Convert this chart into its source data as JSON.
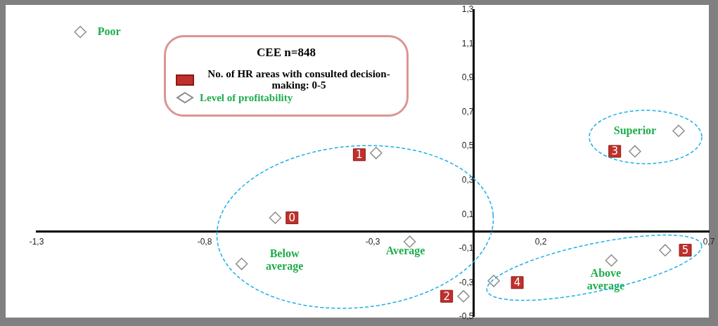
{
  "chart_data": {
    "type": "scatter",
    "title": "CEE n=848",
    "xlim": [
      -1.3,
      0.7
    ],
    "xticks": [
      {
        "value": -1.3,
        "label": "-1,3"
      },
      {
        "value": -0.8,
        "label": "-0,8"
      },
      {
        "value": -0.3,
        "label": "-0,3"
      },
      {
        "value": 0.2,
        "label": "0,2"
      },
      {
        "value": 0.7,
        "label": "0,7"
      }
    ],
    "ylim": [
      -0.5,
      1.3
    ],
    "yticks": [
      {
        "value": -0.5,
        "label": "-0,5"
      },
      {
        "value": -0.3,
        "label": "-0,3"
      },
      {
        "value": -0.1,
        "label": "-0,1"
      },
      {
        "value": 0.1,
        "label": "0,1"
      },
      {
        "value": 0.3,
        "label": "0,3"
      },
      {
        "value": 0.5,
        "label": "0,5"
      },
      {
        "value": 0.7,
        "label": "0,7"
      },
      {
        "value": 0.9,
        "label": "0,9"
      },
      {
        "value": 1.1,
        "label": "1,1"
      },
      {
        "value": 1.3,
        "label": "1,3"
      }
    ],
    "grid": false,
    "legend": "top",
    "series": [
      {
        "name": "No. of HR areas with consulted decision-making: 0-5",
        "color": "#c0302c",
        "marker": "square",
        "x": [
          -0.54,
          -0.34,
          -0.08,
          0.42,
          0.13,
          0.63
        ],
        "values": [
          0.08,
          0.45,
          -0.38,
          0.47,
          -0.3,
          -0.11
        ]
      },
      {
        "name": "Level of profitability",
        "color": "#8c8c8c",
        "marker": "diamond",
        "x": [
          -1.17,
          -0.69,
          -0.19,
          0.41,
          0.61
        ],
        "values": [
          1.17,
          -0.19,
          -0.06,
          -0.17,
          0.59
        ]
      },
      {
        "color": "#8c8c8c",
        "marker": "diamond",
        "x": [
          -0.59,
          -0.29,
          -0.03,
          0.48,
          0.06,
          0.57
        ],
        "values": [
          0.08,
          0.46,
          -0.38,
          0.47,
          -0.29,
          -0.11
        ]
      }
    ],
    "annotations": [
      {
        "text": "Poor",
        "x": -1.17,
        "y": 1.17
      },
      {
        "text": "Below average",
        "x": -0.69,
        "y": -0.19
      },
      {
        "text": "Average",
        "x": -0.19,
        "y": -0.06
      },
      {
        "text": "Superior",
        "x": 0.61,
        "y": 0.59
      },
      {
        "text": "Above average",
        "x": 0.41,
        "y": -0.17
      },
      {
        "text": "0",
        "x": -0.54,
        "y": 0.08
      },
      {
        "text": "1",
        "x": -0.34,
        "y": 0.45
      },
      {
        "text": "2",
        "x": -0.08,
        "y": -0.38
      },
      {
        "text": "3",
        "x": 0.42,
        "y": 0.47
      },
      {
        "text": "4",
        "x": 0.13,
        "y": -0.3
      },
      {
        "text": "5",
        "x": 0.63,
        "y": -0.11
      }
    ]
  }
}
